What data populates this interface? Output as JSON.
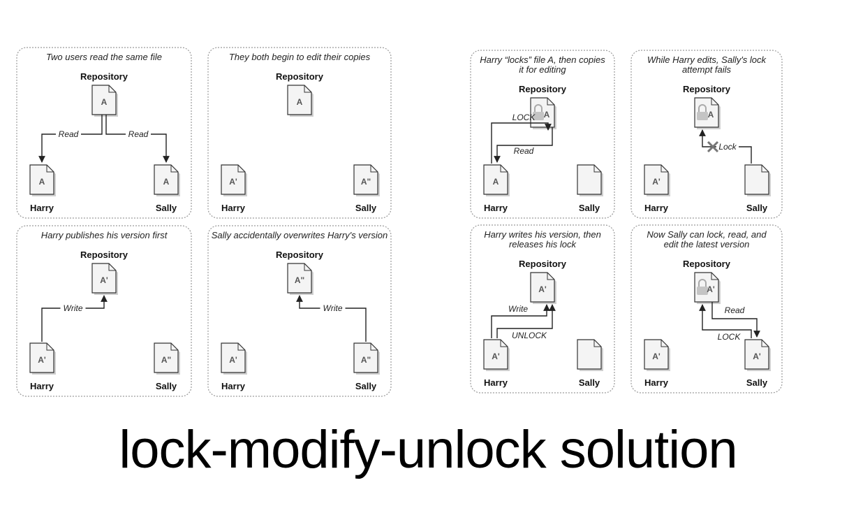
{
  "title": "lock-modify-unlock solution",
  "labels": {
    "repository": "Repository",
    "harry": "Harry",
    "sally": "Sally"
  },
  "panels": [
    {
      "caption": [
        "Two users read the same file"
      ],
      "repo_doc": "A",
      "harry_doc": "A",
      "sally_doc": "A",
      "arrow_labels": [
        "Read",
        "Read"
      ]
    },
    {
      "caption": [
        "They both begin to edit their copies"
      ],
      "repo_doc": "A",
      "harry_doc": "A'",
      "sally_doc": "A\"",
      "arrow_labels": []
    },
    {
      "caption": [
        "Harry publishes his version first"
      ],
      "repo_doc": "A'",
      "harry_doc": "A'",
      "sally_doc": "A\"",
      "arrow_labels": [
        "Write"
      ]
    },
    {
      "caption": [
        "Sally accidentally overwrites Harry's version"
      ],
      "repo_doc": "A\"",
      "harry_doc": "A'",
      "sally_doc": "A\"",
      "arrow_labels": [
        "Write"
      ]
    },
    {
      "caption": [
        "Harry “locks” file A, then copies",
        "it for editing"
      ],
      "repo_doc": "A",
      "repo_locked": true,
      "harry_doc": "A",
      "sally_doc": "",
      "arrow_labels": [
        "LOCK",
        "Read"
      ]
    },
    {
      "caption": [
        "While Harry edits, Sally's lock",
        "attempt fails"
      ],
      "repo_doc": "A",
      "repo_locked": true,
      "harry_doc": "A'",
      "sally_doc": "",
      "arrow_labels": [
        "Lock"
      ]
    },
    {
      "caption": [
        "Harry writes his version, then",
        "releases his lock"
      ],
      "repo_doc": "A'",
      "harry_doc": "A'",
      "sally_doc": "",
      "arrow_labels": [
        "Write",
        "UNLOCK"
      ]
    },
    {
      "caption": [
        "Now Sally can lock, read, and",
        "edit the latest version"
      ],
      "repo_doc": "A'",
      "repo_locked": true,
      "harry_doc": "A'",
      "sally_doc": "A'",
      "arrow_labels": [
        "Read",
        "LOCK"
      ]
    }
  ],
  "icons": [
    "document-icon",
    "padlock-icon",
    "x-mark-icon"
  ]
}
